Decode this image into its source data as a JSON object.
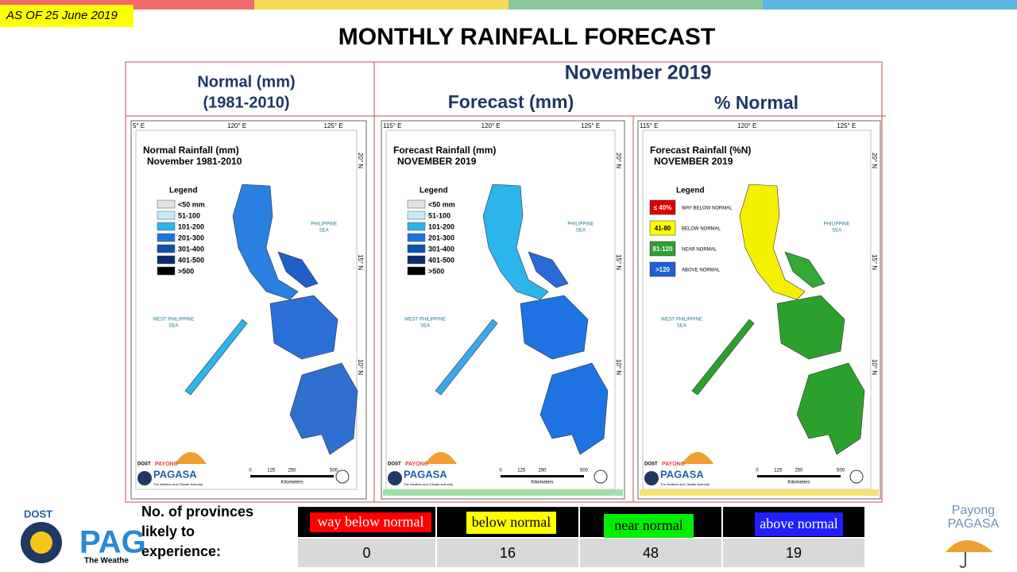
{
  "stamp": "AS OF 25 June 2019",
  "title": "MONTHLY RAINFALL FORECAST",
  "headers": {
    "normal": [
      "Normal (mm)",
      "(1981-2010)"
    ],
    "month": "November 2019",
    "forecast": "Forecast (mm)",
    "percent": "% Normal"
  },
  "maps": [
    {
      "title": [
        "Normal Rainfall (mm)",
        "November 1981-2010"
      ],
      "legend_title": "Legend",
      "legend": [
        {
          "label": "<50 mm",
          "color": "#e2e2e2"
        },
        {
          "label": "51-100",
          "color": "#c8e8f8"
        },
        {
          "label": "101-200",
          "color": "#2cb4ec"
        },
        {
          "label": "201-300",
          "color": "#1f72e2"
        },
        {
          "label": "301-400",
          "color": "#0e50aa"
        },
        {
          "label": "401-500",
          "color": "#0a2b70"
        },
        {
          "label": ">500",
          "color": "#000000"
        }
      ],
      "lon_labels": [
        "5° E",
        "120° E",
        "125° E"
      ],
      "lat_labels": [
        "20° N",
        "15° N",
        "10° N"
      ],
      "seas": [
        [
          "PHILIPPINE",
          "SEA"
        ],
        [
          "WEST PHILIPPINE",
          "SEA"
        ]
      ],
      "scale": [
        0,
        125,
        250,
        500
      ],
      "scale_unit": "Kilometers",
      "logo": [
        "DOST",
        "PAYONG",
        "PAGASA",
        "The Weather and Climate Authority"
      ]
    },
    {
      "title": [
        "Forecast Rainfall (mm)",
        "NOVEMBER 2019"
      ],
      "legend_title": "Legend",
      "legend": [
        {
          "label": "<50 mm",
          "color": "#e2e2e2"
        },
        {
          "label": "51-100",
          "color": "#c8e8f8"
        },
        {
          "label": "101-200",
          "color": "#2cb4ec"
        },
        {
          "label": "201-300",
          "color": "#1f72e2"
        },
        {
          "label": "301-400",
          "color": "#0e50aa"
        },
        {
          "label": "401-500",
          "color": "#0a2b70"
        },
        {
          "label": ">500",
          "color": "#000000"
        }
      ],
      "lon_labels": [
        "115° E",
        "120° E",
        "125° E"
      ],
      "lat_labels": [
        "20° N",
        "15° N",
        "10° N"
      ],
      "seas": [
        [
          "PHILIPPINE",
          "SEA"
        ],
        [
          "WEST PHILIPPINE",
          "SEA"
        ]
      ],
      "scale": [
        0,
        125,
        250,
        500
      ],
      "scale_unit": "Kilometers",
      "logo": [
        "DOST",
        "PAYONG",
        "PAGASA",
        "The Weather and Climate Authority"
      ]
    },
    {
      "title": [
        "Forecast Rainfall (%N)",
        "NOVEMBER 2019"
      ],
      "legend_title": "Legend",
      "legend": [
        {
          "label": "≤ 40%",
          "desc": "WAY BELOW NORMAL",
          "color": "#e00000"
        },
        {
          "label": "41-80",
          "desc": "BELOW NORMAL",
          "color": "#ffff00"
        },
        {
          "label": "81-120",
          "desc": "NEAR NORMAL",
          "color": "#2ca02c"
        },
        {
          "label": ">120",
          "desc": "ABOVE NORMAL",
          "color": "#1f5fd0"
        }
      ],
      "lon_labels": [
        "115° E",
        "120° E",
        "125° E"
      ],
      "lat_labels": [
        "20° N",
        "15° N",
        "10° N"
      ],
      "seas": [
        [
          "PHILIPPINE",
          "SEA"
        ],
        [
          "WEST PHILIPPINE",
          "SEA"
        ]
      ],
      "scale": [
        0,
        125,
        250,
        500
      ],
      "scale_unit": "Kilometers",
      "logo": [
        "DOST",
        "PAYONG",
        "PAGASA",
        "The Weather and Climate Authority"
      ]
    }
  ],
  "table": {
    "row_label": [
      "No. of provinces",
      "likely to",
      "experience:"
    ],
    "columns": [
      {
        "label": "way below normal",
        "color": "#ff0000",
        "count": 0
      },
      {
        "label": "below normal",
        "color": "#ffff00",
        "count": 16
      },
      {
        "label": "near normal",
        "color": "#00ee00",
        "count": 48
      },
      {
        "label": "above normal",
        "color": "#2020ff",
        "count": 19
      }
    ]
  },
  "footer": {
    "left_logo": [
      "DOST",
      "PAG",
      "The Weathe"
    ],
    "right_logo": [
      "Payong",
      "PAGASA"
    ]
  }
}
